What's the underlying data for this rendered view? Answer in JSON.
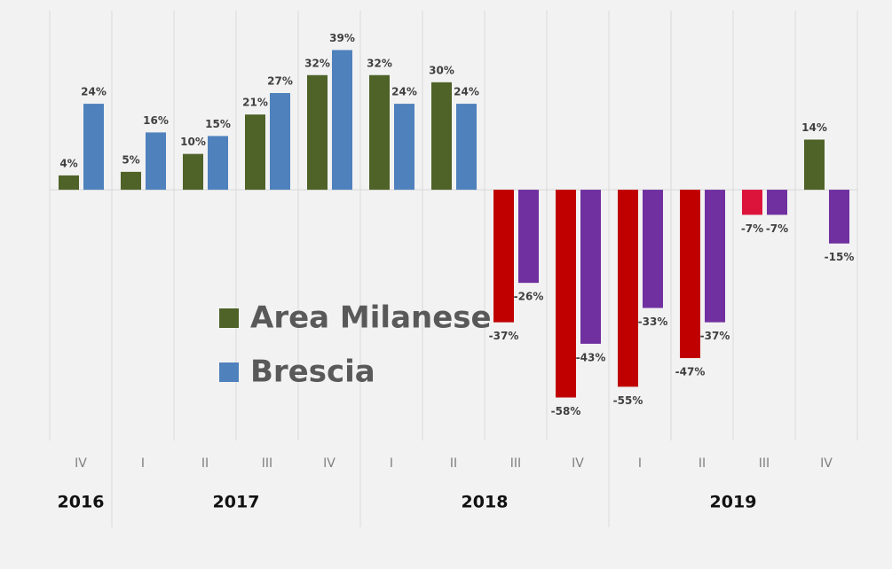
{
  "chart_data": {
    "type": "bar",
    "categories": [
      "IV",
      "I",
      "II",
      "III",
      "IV",
      "I",
      "II",
      "III",
      "IV",
      "I",
      "II",
      "III",
      "IV"
    ],
    "x_groups": [
      {
        "label": "2016",
        "span": 1
      },
      {
        "label": "2017",
        "span": 4
      },
      {
        "label": "2018",
        "span": 4
      },
      {
        "label": "2019",
        "span": 4
      }
    ],
    "series": [
      {
        "name": "Area Milanese",
        "color": "#4f6228",
        "colors": [
          "#4f6228",
          "#4f6228",
          "#4f6228",
          "#4f6228",
          "#4f6228",
          "#4f6228",
          "#4f6228",
          "#c00000",
          "#c00000",
          "#c00000",
          "#c00000",
          "#dc143c",
          "#4f6228"
        ],
        "values": [
          4,
          5,
          10,
          21,
          32,
          32,
          30,
          -37,
          -58,
          -55,
          -47,
          -7,
          14
        ],
        "value_labels": [
          "4%",
          "5%",
          "10%",
          "21%",
          "32%",
          "32%",
          "30%",
          "-37%",
          "-58%",
          "-55%",
          "-47%",
          "-7%",
          "14%"
        ]
      },
      {
        "name": "Brescia",
        "color": "#4f81bd",
        "colors": [
          "#4f81bd",
          "#4f81bd",
          "#4f81bd",
          "#4f81bd",
          "#4f81bd",
          "#4f81bd",
          "#4f81bd",
          "#7030a0",
          "#7030a0",
          "#7030a0",
          "#7030a0",
          "#7030a0",
          "#7030a0"
        ],
        "values": [
          24,
          16,
          15,
          27,
          39,
          24,
          24,
          -26,
          -43,
          -33,
          -37,
          -7,
          -15
        ],
        "value_labels": [
          "24%",
          "16%",
          "15%",
          "27%",
          "39%",
          "24%",
          "24%",
          "-26%",
          "-43%",
          "-33%",
          "-37%",
          "-7%",
          "-15%"
        ]
      }
    ],
    "ylim": [
      -70,
      50
    ]
  }
}
